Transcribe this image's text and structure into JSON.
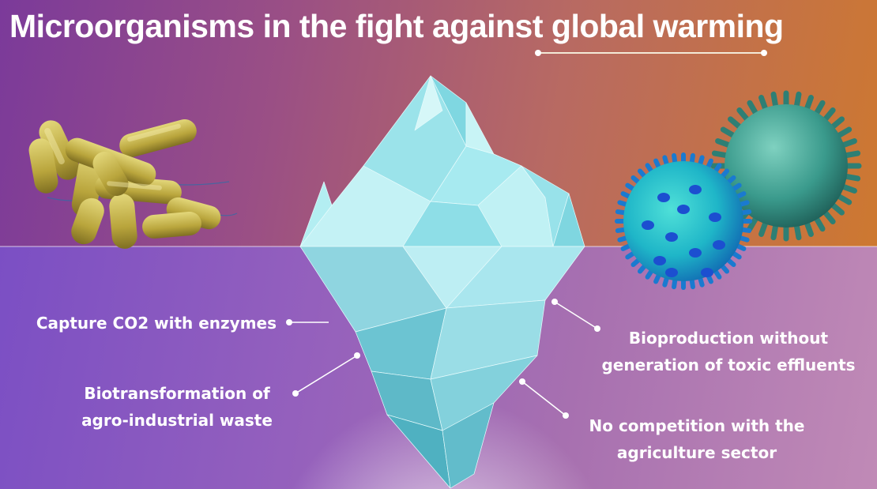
{
  "title": {
    "text": "Microorganisms in the fight against global warming"
  },
  "callouts": [
    {
      "lines": [
        "Capture CO2 with enzymes"
      ]
    },
    {
      "lines": [
        "Biotransformation of",
        "agro-industrial waste"
      ]
    },
    {
      "lines": [
        "Bioproduction without",
        "generation of toxic effluents"
      ]
    },
    {
      "lines": [
        "No competition with the",
        "agriculture sector"
      ]
    }
  ],
  "colors": {
    "sky_left": "#7b3a9a",
    "sky_right": "#d07a2a",
    "water": "#8a5cc0",
    "iceberg_light": "#bdf0f4",
    "iceberg_dark": "#4fb6c6",
    "bacteria": "#c8b648",
    "virus_blue": "#1c86d8",
    "virus_teal": "#3a9a8c"
  },
  "icons": [
    "bacteria-cluster-icon",
    "virus-blue-icon",
    "virus-teal-icon",
    "iceberg-icon"
  ]
}
